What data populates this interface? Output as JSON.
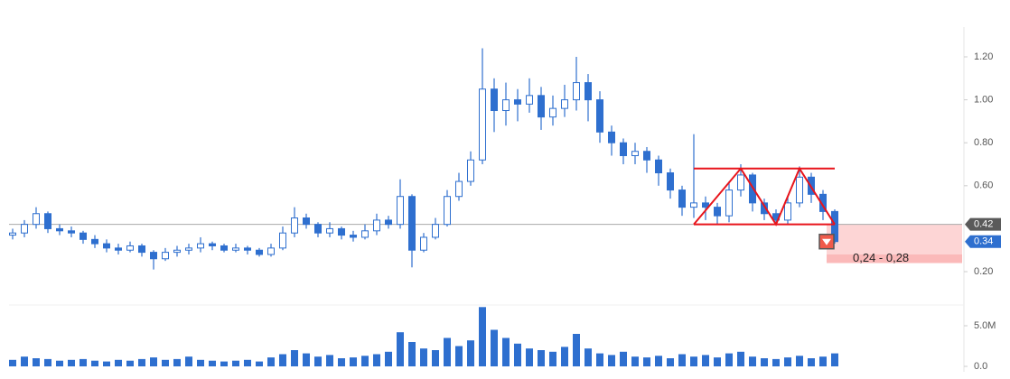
{
  "chart_data": {
    "type": "candlestick",
    "open": [
      0.37,
      0.38,
      0.42,
      0.47,
      0.4,
      0.39,
      0.38,
      0.35,
      0.33,
      0.31,
      0.3,
      0.32,
      0.29,
      0.26,
      0.29,
      0.3,
      0.31,
      0.33,
      0.32,
      0.3,
      0.31,
      0.3,
      0.28,
      0.31,
      0.38,
      0.45,
      0.42,
      0.38,
      0.4,
      0.37,
      0.36,
      0.39,
      0.44,
      0.42,
      0.55,
      0.3,
      0.36,
      0.42,
      0.55,
      0.62,
      0.72,
      1.05,
      0.95,
      1.0,
      0.98,
      1.02,
      0.92,
      0.96,
      1.0,
      1.08,
      1.0,
      0.85,
      0.8,
      0.74,
      0.76,
      0.72,
      0.66,
      0.58,
      0.5,
      0.52,
      0.5,
      0.46,
      0.58,
      0.65,
      0.52,
      0.47,
      0.44,
      0.52,
      0.64,
      0.56,
      0.48
    ],
    "high": [
      0.4,
      0.44,
      0.5,
      0.48,
      0.42,
      0.41,
      0.39,
      0.37,
      0.35,
      0.33,
      0.34,
      0.33,
      0.3,
      0.31,
      0.32,
      0.33,
      0.36,
      0.34,
      0.33,
      0.33,
      0.32,
      0.31,
      0.33,
      0.41,
      0.5,
      0.47,
      0.43,
      0.43,
      0.41,
      0.39,
      0.42,
      0.47,
      0.46,
      0.63,
      0.56,
      0.38,
      0.45,
      0.58,
      0.66,
      0.76,
      1.24,
      1.1,
      1.08,
      1.05,
      1.1,
      1.06,
      1.02,
      1.07,
      1.2,
      1.12,
      1.04,
      0.88,
      0.82,
      0.8,
      0.78,
      0.74,
      0.68,
      0.6,
      0.84,
      0.55,
      0.52,
      0.62,
      0.7,
      0.66,
      0.54,
      0.49,
      0.55,
      0.69,
      0.66,
      0.58,
      0.49
    ],
    "low": [
      0.35,
      0.36,
      0.4,
      0.38,
      0.37,
      0.36,
      0.33,
      0.31,
      0.29,
      0.28,
      0.29,
      0.27,
      0.21,
      0.25,
      0.27,
      0.28,
      0.29,
      0.3,
      0.29,
      0.29,
      0.28,
      0.27,
      0.27,
      0.3,
      0.36,
      0.4,
      0.36,
      0.36,
      0.35,
      0.34,
      0.35,
      0.37,
      0.4,
      0.4,
      0.22,
      0.29,
      0.35,
      0.41,
      0.53,
      0.6,
      0.7,
      0.85,
      0.88,
      0.9,
      0.94,
      0.86,
      0.88,
      0.92,
      0.95,
      0.9,
      0.8,
      0.74,
      0.7,
      0.7,
      0.66,
      0.6,
      0.54,
      0.46,
      0.45,
      0.44,
      0.42,
      0.43,
      0.55,
      0.48,
      0.44,
      0.42,
      0.42,
      0.5,
      0.52,
      0.44,
      0.33
    ],
    "close": [
      0.38,
      0.42,
      0.47,
      0.4,
      0.39,
      0.38,
      0.35,
      0.33,
      0.31,
      0.3,
      0.32,
      0.29,
      0.26,
      0.29,
      0.3,
      0.31,
      0.33,
      0.32,
      0.3,
      0.31,
      0.3,
      0.28,
      0.31,
      0.38,
      0.45,
      0.42,
      0.38,
      0.4,
      0.37,
      0.36,
      0.39,
      0.44,
      0.42,
      0.55,
      0.3,
      0.36,
      0.42,
      0.55,
      0.62,
      0.72,
      1.05,
      0.95,
      1.0,
      0.98,
      1.02,
      0.92,
      0.96,
      1.0,
      1.08,
      1.0,
      0.85,
      0.8,
      0.74,
      0.76,
      0.72,
      0.66,
      0.58,
      0.5,
      0.52,
      0.5,
      0.46,
      0.58,
      0.65,
      0.52,
      0.47,
      0.44,
      0.52,
      0.64,
      0.56,
      0.48,
      0.34
    ],
    "volume": [
      0.8,
      1.2,
      1.0,
      0.9,
      0.7,
      0.8,
      0.9,
      0.7,
      0.6,
      0.8,
      0.7,
      0.9,
      1.1,
      0.8,
      0.9,
      1.2,
      0.8,
      0.7,
      0.6,
      0.7,
      0.8,
      0.6,
      1.1,
      1.5,
      2.0,
      1.6,
      1.2,
      1.4,
      1.0,
      1.1,
      1.3,
      1.5,
      1.8,
      4.2,
      3.0,
      2.2,
      2.0,
      3.5,
      2.5,
      3.2,
      7.3,
      4.5,
      3.5,
      2.8,
      2.2,
      2.0,
      1.8,
      2.4,
      4.0,
      2.2,
      1.6,
      1.4,
      1.8,
      1.2,
      1.1,
      1.3,
      1.0,
      1.5,
      1.2,
      1.4,
      1.1,
      1.6,
      1.8,
      1.2,
      1.0,
      0.9,
      1.1,
      1.3,
      1.0,
      1.2,
      1.6
    ],
    "color": "#2e6fcf",
    "ylim": [
      0.08,
      1.3
    ],
    "yticks": [
      {
        "value": 1.2,
        "label": "1.20"
      },
      {
        "value": 1,
        "label": "1.00"
      },
      {
        "value": 0.8,
        "label": "0.80"
      },
      {
        "value": 0.6,
        "label": "0.60"
      },
      {
        "value": 0.2,
        "label": "0.20"
      }
    ],
    "volume_ylim": [
      0,
      7.5
    ],
    "volume_yticks": [
      {
        "value": 5,
        "label": "5.0M"
      },
      {
        "value": 0,
        "label": "0.0"
      }
    ],
    "reference_line": 0.42,
    "last_price": 0.34,
    "pattern": {
      "x": [
        58,
        62,
        65,
        67,
        70
      ],
      "values": [
        0.42,
        0.68,
        0.42,
        0.68,
        0.42
      ],
      "resistance": 0.68,
      "color": "#e8141b"
    },
    "target_zone": {
      "label": "0,24 - 0,28",
      "low": 0.24,
      "high": 0.28
    }
  }
}
